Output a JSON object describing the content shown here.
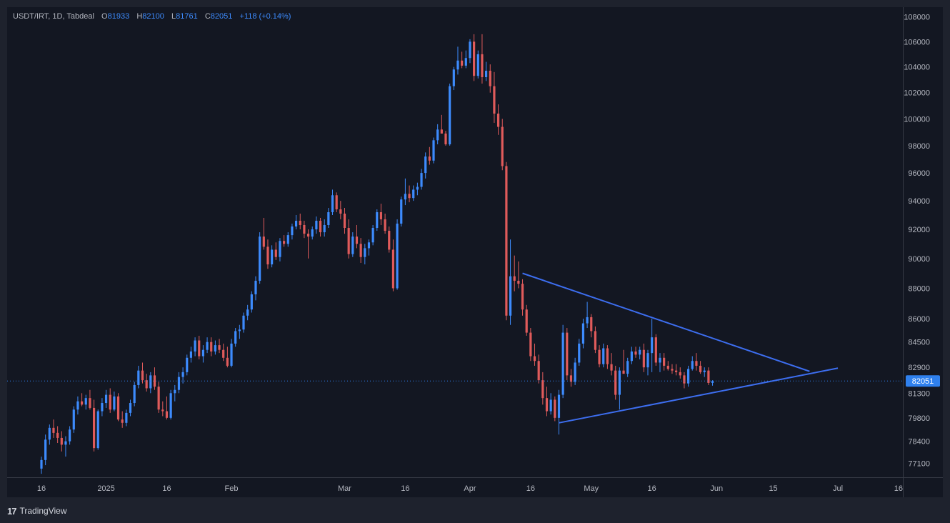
{
  "header": {
    "symbol": "USDT/IRT, 1D, Tabdeal",
    "o_label": "O",
    "o_value": "81933",
    "h_label": "H",
    "h_value": "82100",
    "l_label": "L",
    "l_value": "81761",
    "c_label": "C",
    "c_value": "82051",
    "change": "+118 (+0.14%)"
  },
  "footer": {
    "brand": "TradingView",
    "logo": "17"
  },
  "colors": {
    "up": "#3d8bfd",
    "down": "#e05b5b",
    "background": "#131722",
    "grid": "#2a2e39",
    "trendline": "#3d6ef0",
    "price_tag": "#2f80ed"
  },
  "chart_data": {
    "type": "candlestick",
    "timeframe": "1D",
    "y_ticks": [
      108000,
      106000,
      104000,
      102000,
      100000,
      98000,
      96000,
      94000,
      92000,
      90000,
      88000,
      86000,
      84500,
      82900,
      81300,
      79800,
      78400,
      77100
    ],
    "y_scale": "log",
    "ylim": [
      76300,
      108800
    ],
    "x_ticks": [
      {
        "label": "16",
        "day": 0
      },
      {
        "label": "2025",
        "day": 16
      },
      {
        "label": "16",
        "day": 31
      },
      {
        "label": "Feb",
        "day": 47
      },
      {
        "label": "Mar",
        "day": 75
      },
      {
        "label": "16",
        "day": 90
      },
      {
        "label": "Apr",
        "day": 106
      },
      {
        "label": "16",
        "day": 121
      },
      {
        "label": "May",
        "day": 136
      },
      {
        "label": "16",
        "day": 151
      },
      {
        "label": "Jun",
        "day": 167
      },
      {
        "label": "15",
        "day": 181
      },
      {
        "label": "Jul",
        "day": 197
      },
      {
        "label": "16",
        "day": 212
      }
    ],
    "x_day_zero": "2024-12-16",
    "last_price": 82051,
    "last_price_label": "82051",
    "trendlines": [
      {
        "name": "upper",
        "x1": 119,
        "y1": 89000,
        "x2": 190,
        "y2": 82650
      },
      {
        "name": "lower",
        "x1": 128,
        "y1": 79500,
        "x2": 197,
        "y2": 82850
      }
    ],
    "candles": [
      [
        76800,
        77500,
        76500,
        77300
      ],
      [
        77300,
        78800,
        77000,
        78500
      ],
      [
        78500,
        79400,
        78200,
        79200
      ],
      [
        79200,
        79700,
        78600,
        78900
      ],
      [
        78900,
        79300,
        78300,
        78600
      ],
      [
        78600,
        79000,
        77800,
        78200
      ],
      [
        78200,
        78700,
        77500,
        78400
      ],
      [
        78400,
        79300,
        78200,
        79100
      ],
      [
        79100,
        80500,
        78900,
        80300
      ],
      [
        80300,
        81100,
        80000,
        80800
      ],
      [
        80800,
        81300,
        80500,
        80600
      ],
      [
        80600,
        81200,
        80300,
        81000
      ],
      [
        81000,
        81500,
        80300,
        80400
      ],
      [
        80400,
        80900,
        77800,
        78000
      ],
      [
        78000,
        80300,
        77900,
        80200
      ],
      [
        80200,
        81000,
        79900,
        80700
      ],
      [
        80700,
        81500,
        80400,
        81200
      ],
      [
        81200,
        81600,
        80100,
        80300
      ],
      [
        80300,
        81400,
        80200,
        81100
      ],
      [
        81100,
        81300,
        79600,
        79700
      ],
      [
        79700,
        80200,
        79200,
        79500
      ],
      [
        79500,
        80300,
        79300,
        80100
      ],
      [
        80100,
        80900,
        79900,
        80700
      ],
      [
        80700,
        82000,
        80500,
        81800
      ],
      [
        81800,
        83000,
        81600,
        82700
      ],
      [
        82700,
        83200,
        81900,
        82100
      ],
      [
        82100,
        82500,
        81400,
        81600
      ],
      [
        81600,
        82600,
        81300,
        82400
      ],
      [
        82400,
        82900,
        81500,
        81700
      ],
      [
        81700,
        82000,
        80100,
        80300
      ],
      [
        80300,
        80800,
        79900,
        80200
      ],
      [
        80200,
        81100,
        79700,
        79800
      ],
      [
        79800,
        81500,
        79700,
        81300
      ],
      [
        81300,
        81800,
        80800,
        81500
      ],
      [
        81500,
        82600,
        81300,
        82300
      ],
      [
        82300,
        82900,
        81900,
        82600
      ],
      [
        82600,
        83700,
        82400,
        83500
      ],
      [
        83500,
        84200,
        83200,
        83900
      ],
      [
        83900,
        84800,
        83600,
        84600
      ],
      [
        84600,
        84900,
        83400,
        83600
      ],
      [
        83600,
        84300,
        83200,
        84000
      ],
      [
        84000,
        84800,
        83800,
        84500
      ],
      [
        84500,
        84800,
        83600,
        83900
      ],
      [
        83900,
        84600,
        83700,
        84300
      ],
      [
        84300,
        84700,
        83800,
        84000
      ],
      [
        84000,
        84400,
        83300,
        83500
      ],
      [
        83500,
        84200,
        82900,
        83000
      ],
      [
        83000,
        84700,
        82900,
        84400
      ],
      [
        84400,
        85400,
        84200,
        85200
      ],
      [
        85200,
        85600,
        84700,
        85300
      ],
      [
        85300,
        86400,
        85100,
        86200
      ],
      [
        86200,
        86900,
        85900,
        86600
      ],
      [
        86600,
        87800,
        86400,
        87600
      ],
      [
        87600,
        88800,
        87200,
        88500
      ],
      [
        88500,
        91800,
        88300,
        91500
      ],
      [
        91500,
        92800,
        90600,
        90800
      ],
      [
        90800,
        91300,
        89300,
        89600
      ],
      [
        89600,
        90900,
        89400,
        90600
      ],
      [
        90600,
        91100,
        89900,
        90100
      ],
      [
        90100,
        91400,
        89800,
        91200
      ],
      [
        91200,
        91600,
        90800,
        91000
      ],
      [
        91000,
        91800,
        90800,
        91600
      ],
      [
        91600,
        92400,
        91300,
        92200
      ],
      [
        92200,
        93000,
        92000,
        92600
      ],
      [
        92600,
        93100,
        92000,
        92300
      ],
      [
        92300,
        92600,
        91400,
        91700
      ],
      [
        91700,
        92000,
        90000,
        91500
      ],
      [
        91500,
        92200,
        91300,
        92000
      ],
      [
        92000,
        92900,
        91700,
        92600
      ],
      [
        92600,
        92800,
        91500,
        91800
      ],
      [
        91800,
        92700,
        91500,
        92300
      ],
      [
        92300,
        93500,
        92100,
        93200
      ],
      [
        93200,
        94800,
        93000,
        94400
      ],
      [
        94400,
        94600,
        93200,
        93400
      ],
      [
        93400,
        94000,
        92700,
        93100
      ],
      [
        93100,
        93500,
        91700,
        92100
      ],
      [
        92100,
        92700,
        90000,
        90300
      ],
      [
        90300,
        91800,
        90100,
        91500
      ],
      [
        91500,
        92300,
        90700,
        91000
      ],
      [
        91000,
        91400,
        89700,
        90100
      ],
      [
        90100,
        91000,
        89600,
        90700
      ],
      [
        90700,
        91300,
        90200,
        91100
      ],
      [
        91100,
        92300,
        90900,
        92100
      ],
      [
        92100,
        93400,
        91900,
        93200
      ],
      [
        93200,
        93800,
        92300,
        92700
      ],
      [
        92700,
        93100,
        91700,
        91900
      ],
      [
        91900,
        92200,
        90400,
        90600
      ],
      [
        90600,
        91300,
        87800,
        88000
      ],
      [
        88000,
        92700,
        87900,
        92400
      ],
      [
        92400,
        94300,
        92200,
        94100
      ],
      [
        94100,
        95600,
        93700,
        94500
      ],
      [
        94500,
        95100,
        93900,
        94200
      ],
      [
        94200,
        95100,
        94000,
        94800
      ],
      [
        94800,
        95300,
        94400,
        95000
      ],
      [
        95000,
        96300,
        94800,
        96000
      ],
      [
        96000,
        97500,
        95600,
        97200
      ],
      [
        97200,
        97900,
        96600,
        96900
      ],
      [
        96900,
        98600,
        96700,
        98400
      ],
      [
        98400,
        99600,
        98100,
        99200
      ],
      [
        99200,
        100300,
        98900,
        98900
      ],
      [
        98900,
        99100,
        98000,
        98100
      ],
      [
        98100,
        102700,
        98000,
        102500
      ],
      [
        102500,
        104000,
        102200,
        103800
      ],
      [
        103800,
        105600,
        103400,
        104500
      ],
      [
        104500,
        105200,
        103900,
        104100
      ],
      [
        104100,
        105300,
        103900,
        104700
      ],
      [
        104700,
        106200,
        104300,
        106000
      ],
      [
        106000,
        106600,
        102900,
        103300
      ],
      [
        103300,
        105300,
        103100,
        105000
      ],
      [
        105000,
        106600,
        102700,
        103200
      ],
      [
        103200,
        104400,
        102900,
        103700
      ],
      [
        103700,
        104200,
        102000,
        102500
      ],
      [
        102500,
        103600,
        99700,
        100400
      ],
      [
        100400,
        101100,
        98800,
        99400
      ],
      [
        99400,
        100000,
        96200,
        96500
      ],
      [
        96500,
        96800,
        85900,
        86200
      ],
      [
        86200,
        91300,
        85600,
        88800
      ],
      [
        88800,
        90200,
        87800,
        88500
      ],
      [
        88500,
        89800,
        88000,
        88300
      ],
      [
        88300,
        88600,
        86200,
        86600
      ],
      [
        86600,
        86900,
        84900,
        85100
      ],
      [
        85100,
        85400,
        83300,
        83600
      ],
      [
        83600,
        84400,
        83000,
        83300
      ],
      [
        83300,
        83700,
        81900,
        82100
      ],
      [
        82100,
        82600,
        80600,
        81000
      ],
      [
        81000,
        81700,
        79900,
        80200
      ],
      [
        80200,
        81300,
        80000,
        80900
      ],
      [
        80900,
        81100,
        79600,
        79800
      ],
      [
        79800,
        81500,
        78800,
        81200
      ],
      [
        81200,
        85600,
        81000,
        85100
      ],
      [
        85100,
        85400,
        82100,
        82400
      ],
      [
        82400,
        82800,
        81700,
        82000
      ],
      [
        82000,
        83500,
        81800,
        83200
      ],
      [
        83200,
        84700,
        83000,
        84400
      ],
      [
        84400,
        86000,
        84100,
        85700
      ],
      [
        85700,
        87100,
        85400,
        86100
      ],
      [
        86100,
        86300,
        84800,
        85200
      ],
      [
        85200,
        85500,
        83800,
        84000
      ],
      [
        84000,
        84300,
        82900,
        83100
      ],
      [
        83100,
        84400,
        82900,
        84100
      ],
      [
        84100,
        84300,
        82800,
        83100
      ],
      [
        83100,
        83800,
        82400,
        82700
      ],
      [
        82700,
        83000,
        80900,
        81200
      ],
      [
        81200,
        82900,
        80300,
        82700
      ],
      [
        82700,
        84000,
        82500,
        82500
      ],
      [
        82500,
        83500,
        82300,
        83300
      ],
      [
        83300,
        84200,
        83100,
        83900
      ],
      [
        83900,
        84200,
        83500,
        83700
      ],
      [
        83700,
        84200,
        83400,
        84000
      ],
      [
        84000,
        84400,
        82600,
        82900
      ],
      [
        82900,
        84000,
        82400,
        83800
      ],
      [
        83800,
        86000,
        82600,
        84800
      ],
      [
        84800,
        85000,
        83000,
        83200
      ],
      [
        83200,
        83800,
        82600,
        83500
      ],
      [
        83500,
        83800,
        82700,
        83000
      ],
      [
        83000,
        83300,
        82700,
        82800
      ],
      [
        82800,
        83100,
        82500,
        82700
      ],
      [
        82700,
        83100,
        82400,
        82600
      ],
      [
        82600,
        82900,
        82200,
        82400
      ],
      [
        82400,
        82600,
        81600,
        81900
      ],
      [
        81900,
        83000,
        81700,
        82800
      ],
      [
        82800,
        83600,
        82700,
        83300
      ],
      [
        83300,
        83800,
        82700,
        83000
      ],
      [
        83000,
        83300,
        82500,
        82600
      ],
      [
        82600,
        82900,
        82300,
        82700
      ],
      [
        82700,
        82900,
        81800,
        81933
      ],
      [
        81933,
        82100,
        81761,
        82051
      ]
    ]
  }
}
